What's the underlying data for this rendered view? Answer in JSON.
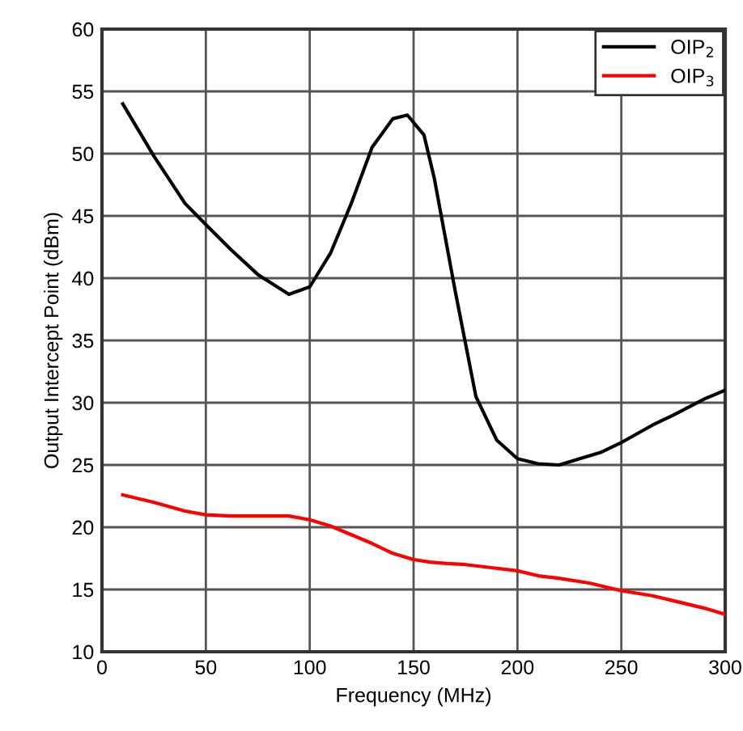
{
  "chart_data": {
    "type": "line",
    "xlabel": "Frequency (MHz)",
    "ylabel": "Output Intercept Point (dBm)",
    "xlim": [
      0,
      300
    ],
    "xticks": [
      0,
      50,
      100,
      150,
      200,
      250,
      300
    ],
    "ylim": [
      10,
      60
    ],
    "yticks": [
      10,
      15,
      20,
      25,
      30,
      35,
      40,
      45,
      50,
      55,
      60
    ],
    "grid": true,
    "legend": "top right",
    "series": [
      {
        "name": "OIP$_{2}$",
        "color": "#000000",
        "x": [
          10,
          25,
          40,
          50,
          62,
          75,
          90,
          100,
          110,
          120,
          130,
          140,
          147,
          155,
          160,
          170,
          180,
          190,
          200,
          210,
          220,
          240,
          250,
          265,
          275,
          290,
          300
        ],
        "values": [
          54,
          49.8,
          46,
          44.3,
          42.3,
          40.3,
          38.7,
          39.3,
          42,
          46,
          50.5,
          52.8,
          53.1,
          51.5,
          48,
          39,
          30.5,
          27,
          25.5,
          25.1,
          25,
          26,
          26.8,
          28.2,
          29,
          30.3,
          31
        ]
      },
      {
        "name": "OIP$_{3}$",
        "color": "#ff0000",
        "x": [
          10,
          25,
          40,
          50,
          62,
          90,
          100,
          110,
          120,
          130,
          140,
          150,
          158,
          165,
          175,
          185,
          200,
          210,
          220,
          235,
          250,
          265,
          275,
          290,
          300
        ],
        "values": [
          22.6,
          22,
          21.3,
          21,
          20.9,
          20.9,
          20.6,
          20.1,
          19.4,
          18.7,
          17.9,
          17.4,
          17.2,
          17.1,
          17,
          16.8,
          16.5,
          16.1,
          15.9,
          15.5,
          14.9,
          14.5,
          14.1,
          13.5,
          13
        ]
      }
    ]
  }
}
